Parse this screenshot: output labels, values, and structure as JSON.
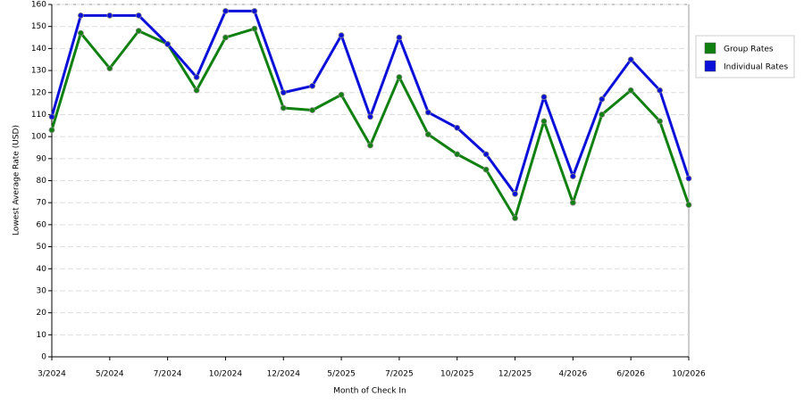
{
  "chart_data": {
    "type": "line",
    "x_label": "Month of Check In",
    "y_label": "Lowest Average Rate (USD)",
    "categories": [
      "3/2024",
      null,
      "5/2024",
      null,
      "7/2024",
      null,
      "10/2024",
      null,
      "12/2024",
      null,
      "5/2025",
      null,
      "7/2025",
      null,
      "10/2025",
      null,
      "12/2025",
      null,
      "4/2026",
      null,
      "6/2026",
      null,
      "10/2026"
    ],
    "series": [
      {
        "name": "Group Rates",
        "color": "#108010",
        "values": [
          103,
          147,
          131,
          148,
          142,
          121,
          145,
          149,
          113,
          112,
          119,
          96,
          127,
          101,
          92,
          85,
          63,
          107,
          70,
          110,
          121,
          107,
          69
        ]
      },
      {
        "name": "Individual Rates",
        "color": "#0a10d8",
        "values": [
          109,
          155,
          155,
          155,
          142,
          127,
          157,
          157,
          120,
          123,
          146,
          109,
          145,
          111,
          104,
          92,
          74,
          118,
          82,
          117,
          135,
          121,
          81
        ]
      }
    ],
    "ylim": [
      0,
      160
    ],
    "yticks": [
      0,
      10,
      20,
      30,
      40,
      50,
      60,
      70,
      80,
      90,
      100,
      110,
      120,
      130,
      140,
      150,
      160
    ],
    "grid": true,
    "legend": "right"
  }
}
